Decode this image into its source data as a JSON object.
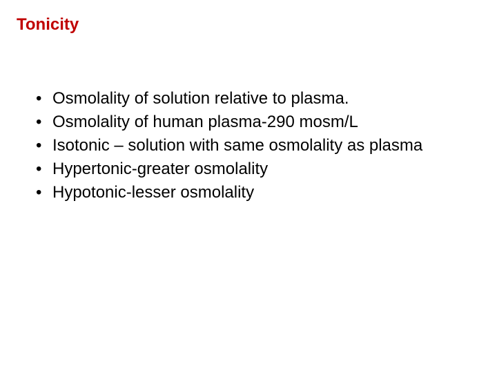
{
  "slide": {
    "title": "Tonicity",
    "title_color": "#c00000",
    "title_fontsize": 24,
    "body_color": "#000000",
    "body_fontsize": 24,
    "line_height": 1.25,
    "background_color": "#ffffff",
    "bullets": [
      "Osmolality of solution relative to plasma.",
      "Osmolality of human plasma-290 mosm/L",
      "Isotonic – solution  with same osmolality as plasma",
      "Hypertonic-greater osmolality",
      "Hypotonic-lesser osmolality"
    ]
  }
}
